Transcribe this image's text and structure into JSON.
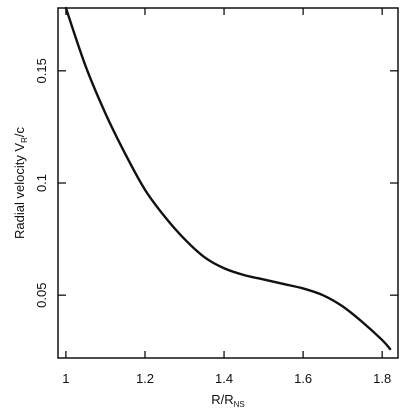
{
  "chart_data": {
    "type": "line",
    "title": "",
    "xlabel": {
      "main": "R/R",
      "subscript": "NS"
    },
    "ylabel": {
      "main": "Radial velocity  V",
      "subscript": "R",
      "suffix": "/c"
    },
    "xlim": [
      0.98,
      1.84
    ],
    "ylim": [
      0.022,
      0.178
    ],
    "xticks": [
      1.0,
      1.2,
      1.4,
      1.6,
      1.8
    ],
    "xtick_labels": [
      "1",
      "1.2",
      "1.4",
      "1.6",
      "1.8"
    ],
    "yticks": [
      0.05,
      0.1,
      0.15
    ],
    "ytick_labels": [
      "0.05",
      "0.1",
      "0.15"
    ],
    "grid": false,
    "series": [
      {
        "x": [
          1.0,
          1.05,
          1.1,
          1.15,
          1.2,
          1.25,
          1.3,
          1.35,
          1.4,
          1.45,
          1.5,
          1.55,
          1.6,
          1.65,
          1.7,
          1.75,
          1.8,
          1.82
        ],
        "y": [
          0.178,
          0.152,
          0.131,
          0.113,
          0.097,
          0.085,
          0.075,
          0.067,
          0.062,
          0.059,
          0.057,
          0.055,
          0.053,
          0.05,
          0.045,
          0.038,
          0.03,
          0.026
        ]
      }
    ]
  }
}
